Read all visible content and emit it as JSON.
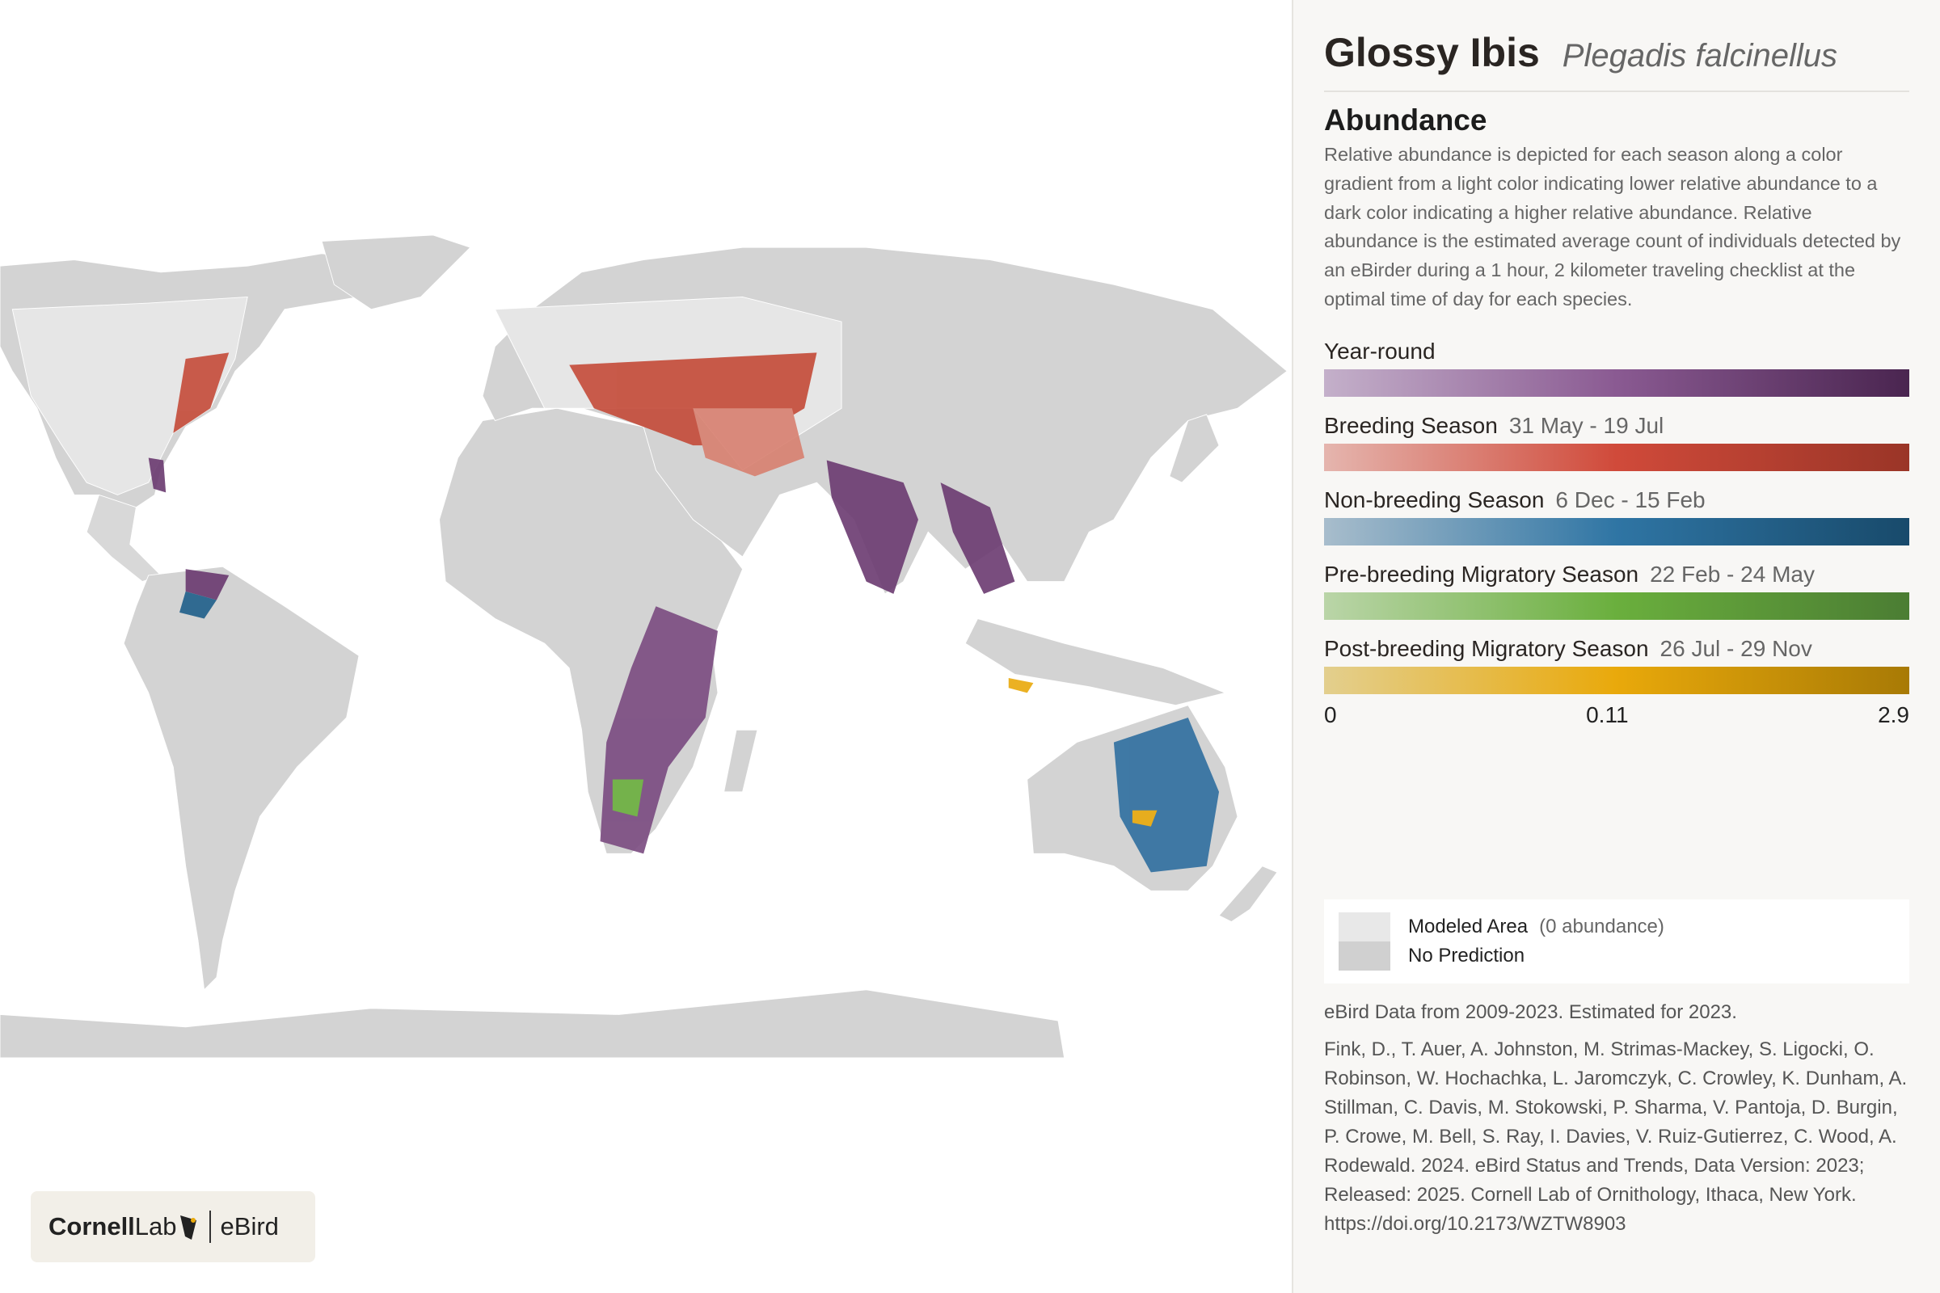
{
  "header": {
    "common_name": "Glossy Ibis",
    "scientific_name": "Plegadis falcinellus"
  },
  "abundance": {
    "title": "Abundance",
    "description": "Relative abundance is depicted for each season along a color gradient from a light color indicating lower relative abundance to a dark color indicating a higher relative abundance. Relative abundance is the estimated average count of individuals detected by an eBirder during a 1 hour, 2 kilometer traveling checklist at the optimal time of day for each species.",
    "seasons": [
      {
        "name": "Year-round",
        "colors": [
          "#c4b0ca",
          "#8a5a92",
          "#4a2550"
        ]
      },
      {
        "name": "Breeding Season",
        "dates": "31 May - 19 Jul",
        "colors": [
          "#e5b5ae",
          "#d04a3a",
          "#9a3527"
        ]
      },
      {
        "name": "Non-breeding Season",
        "dates": "6 Dec - 15 Feb",
        "colors": [
          "#a8bdcc",
          "#2f75a4",
          "#184a6b"
        ]
      },
      {
        "name": "Pre-breeding Migratory Season",
        "dates": "22 Feb - 24 May",
        "colors": [
          "#bad5a8",
          "#6aaf3d",
          "#4b7d33"
        ]
      },
      {
        "name": "Post-breeding Migratory Season",
        "dates": "26 Jul - 29 Nov",
        "colors": [
          "#e3cf8e",
          "#e9a90b",
          "#a87a05"
        ]
      }
    ],
    "scale_labels": [
      0,
      0.11,
      2.9
    ]
  },
  "legend": [
    {
      "label": "Modeled Area",
      "note": "(0 abundance)",
      "color": "#e8e8e8"
    },
    {
      "label": "No Prediction",
      "color": "#d0d0d0"
    }
  ],
  "data_note": "eBird Data from 2009-2023. Estimated for 2023.",
  "citation": "Fink, D., T. Auer, A. Johnston, M. Strimas-Mackey, S. Ligocki, O. Robinson, W. Hochachka, L. Jaromczyk, C. Crowley, K. Dunham, A. Stillman, C. Davis, M. Stokowski, P. Sharma, V. Pantoja, D. Burgin, P. Crowe, M. Bell, S. Ray, I. Davies, V. Ruiz-Gutierrez, C. Wood, A. Rodewald. 2024. eBird Status and Trends, Data Version: 2023; Released: 2025. Cornell Lab of Ornithology, Ithaca, New York. https://doi.org/10.2173/WZTW8903",
  "logo": {
    "org": "Cornell",
    "org_suffix": "Lab",
    "product": "eBird"
  }
}
